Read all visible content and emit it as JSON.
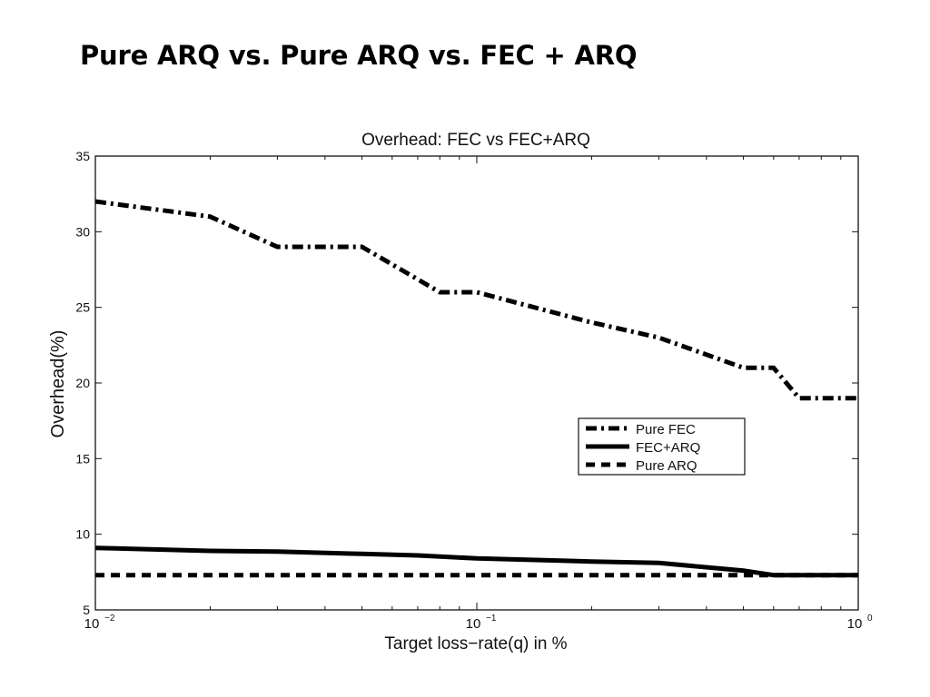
{
  "slide": {
    "title": "Pure ARQ vs. Pure ARQ vs. FEC + ARQ"
  },
  "chart_data": {
    "type": "line",
    "title": "Overhead: FEC vs FEC+ARQ",
    "xlabel": "Target loss−rate(q) in %",
    "ylabel": "Overhead(%)",
    "xscale": "log",
    "xlim": [
      0.01,
      1
    ],
    "ylim": [
      5,
      35
    ],
    "yticks": [
      5,
      10,
      15,
      20,
      25,
      30,
      35
    ],
    "xticks": [
      {
        "value": 0.01,
        "base": "10",
        "exp": "−2"
      },
      {
        "value": 0.1,
        "base": "10",
        "exp": "−1"
      },
      {
        "value": 1,
        "base": "10",
        "exp": "0"
      }
    ],
    "grid": false,
    "legend_position": "right-middle",
    "series": [
      {
        "name": "Pure FEC",
        "style": "dash-dot",
        "x": [
          0.01,
          0.02,
          0.03,
          0.05,
          0.08,
          0.1,
          0.2,
          0.3,
          0.5,
          0.6,
          0.7,
          1.0
        ],
        "y": [
          32,
          31,
          29,
          29,
          26,
          26,
          24,
          23,
          21,
          21,
          19,
          19
        ]
      },
      {
        "name": "FEC+ARQ",
        "style": "solid",
        "x": [
          0.01,
          0.02,
          0.03,
          0.05,
          0.07,
          0.1,
          0.2,
          0.3,
          0.5,
          0.6,
          1.0
        ],
        "y": [
          9.1,
          8.9,
          8.85,
          8.7,
          8.6,
          8.4,
          8.2,
          8.1,
          7.6,
          7.3,
          7.3
        ]
      },
      {
        "name": "Pure ARQ",
        "style": "dashed",
        "x": [
          0.01,
          1.0
        ],
        "y": [
          7.3,
          7.3
        ]
      }
    ]
  }
}
